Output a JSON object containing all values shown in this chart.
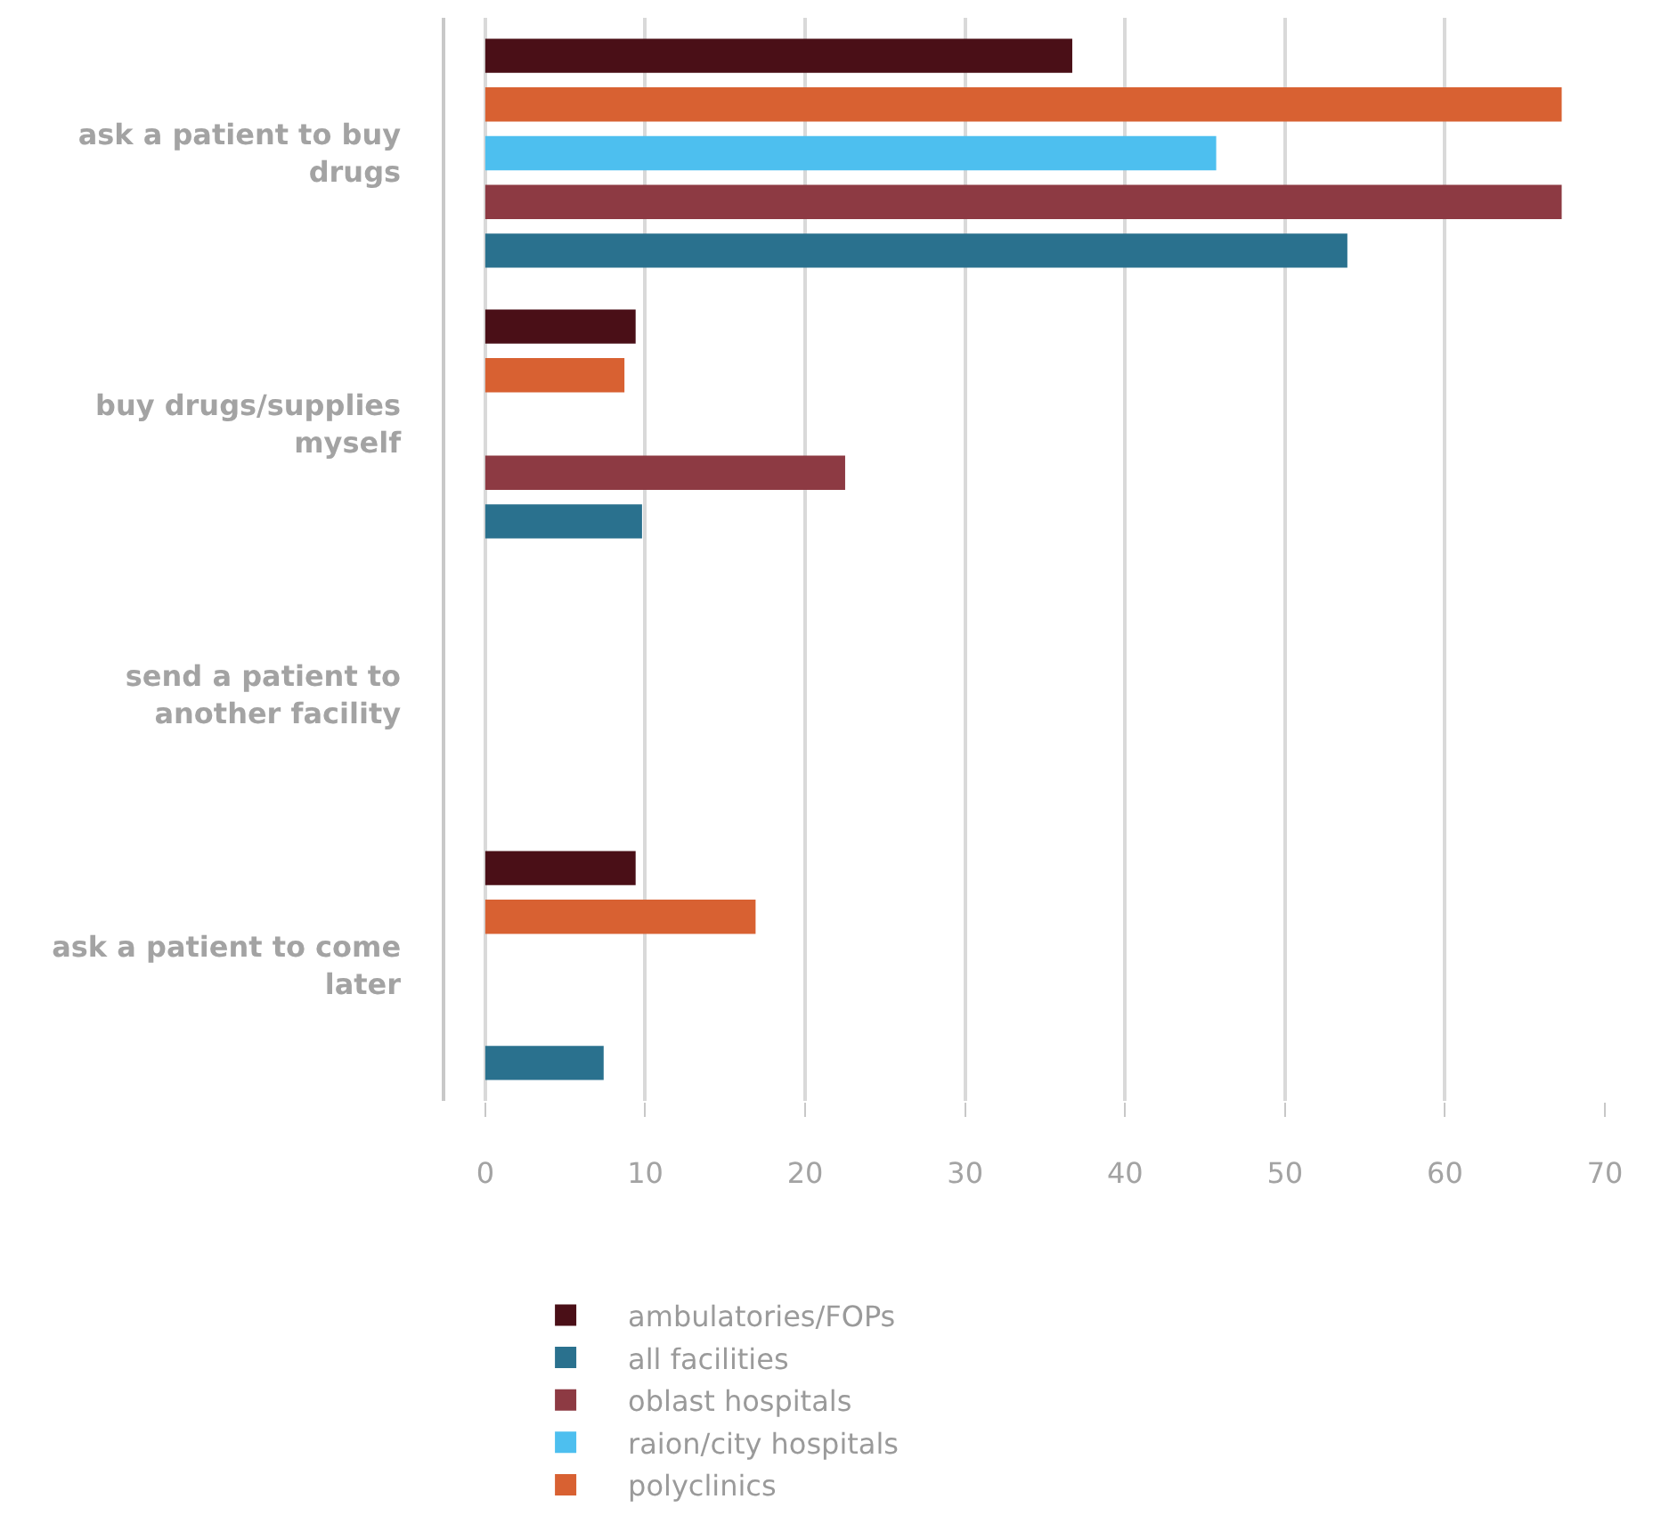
{
  "chart_data": {
    "type": "bar",
    "orientation": "horizontal",
    "categories": [
      "ask a patient to buy drugs",
      "buy drugs/supplies myself",
      "send a patient to another facility",
      "ask a patient to come later"
    ],
    "series": [
      {
        "name": "ambulatories/FOPs",
        "color": "#4a0f17",
        "values": [
          36.7,
          9.4,
          null,
          9.4
        ]
      },
      {
        "name": "polyclinics",
        "color": "#d86132",
        "values": [
          67.3,
          8.7,
          null,
          16.9
        ]
      },
      {
        "name": "raion/city hospitals",
        "color": "#4dbfef",
        "values": [
          45.7,
          null,
          null,
          null
        ]
      },
      {
        "name": "oblast hospitals",
        "color": "#8d3a43",
        "values": [
          67.3,
          22.5,
          null,
          null
        ]
      },
      {
        "name": "all facilities",
        "color": "#2a718e",
        "values": [
          53.9,
          9.8,
          null,
          7.4
        ]
      }
    ],
    "xlim": [
      -2.5,
      70
    ],
    "xticks": [
      0,
      10,
      20,
      30,
      40,
      50,
      60,
      70
    ],
    "grid": "x",
    "legend": "bottom"
  }
}
